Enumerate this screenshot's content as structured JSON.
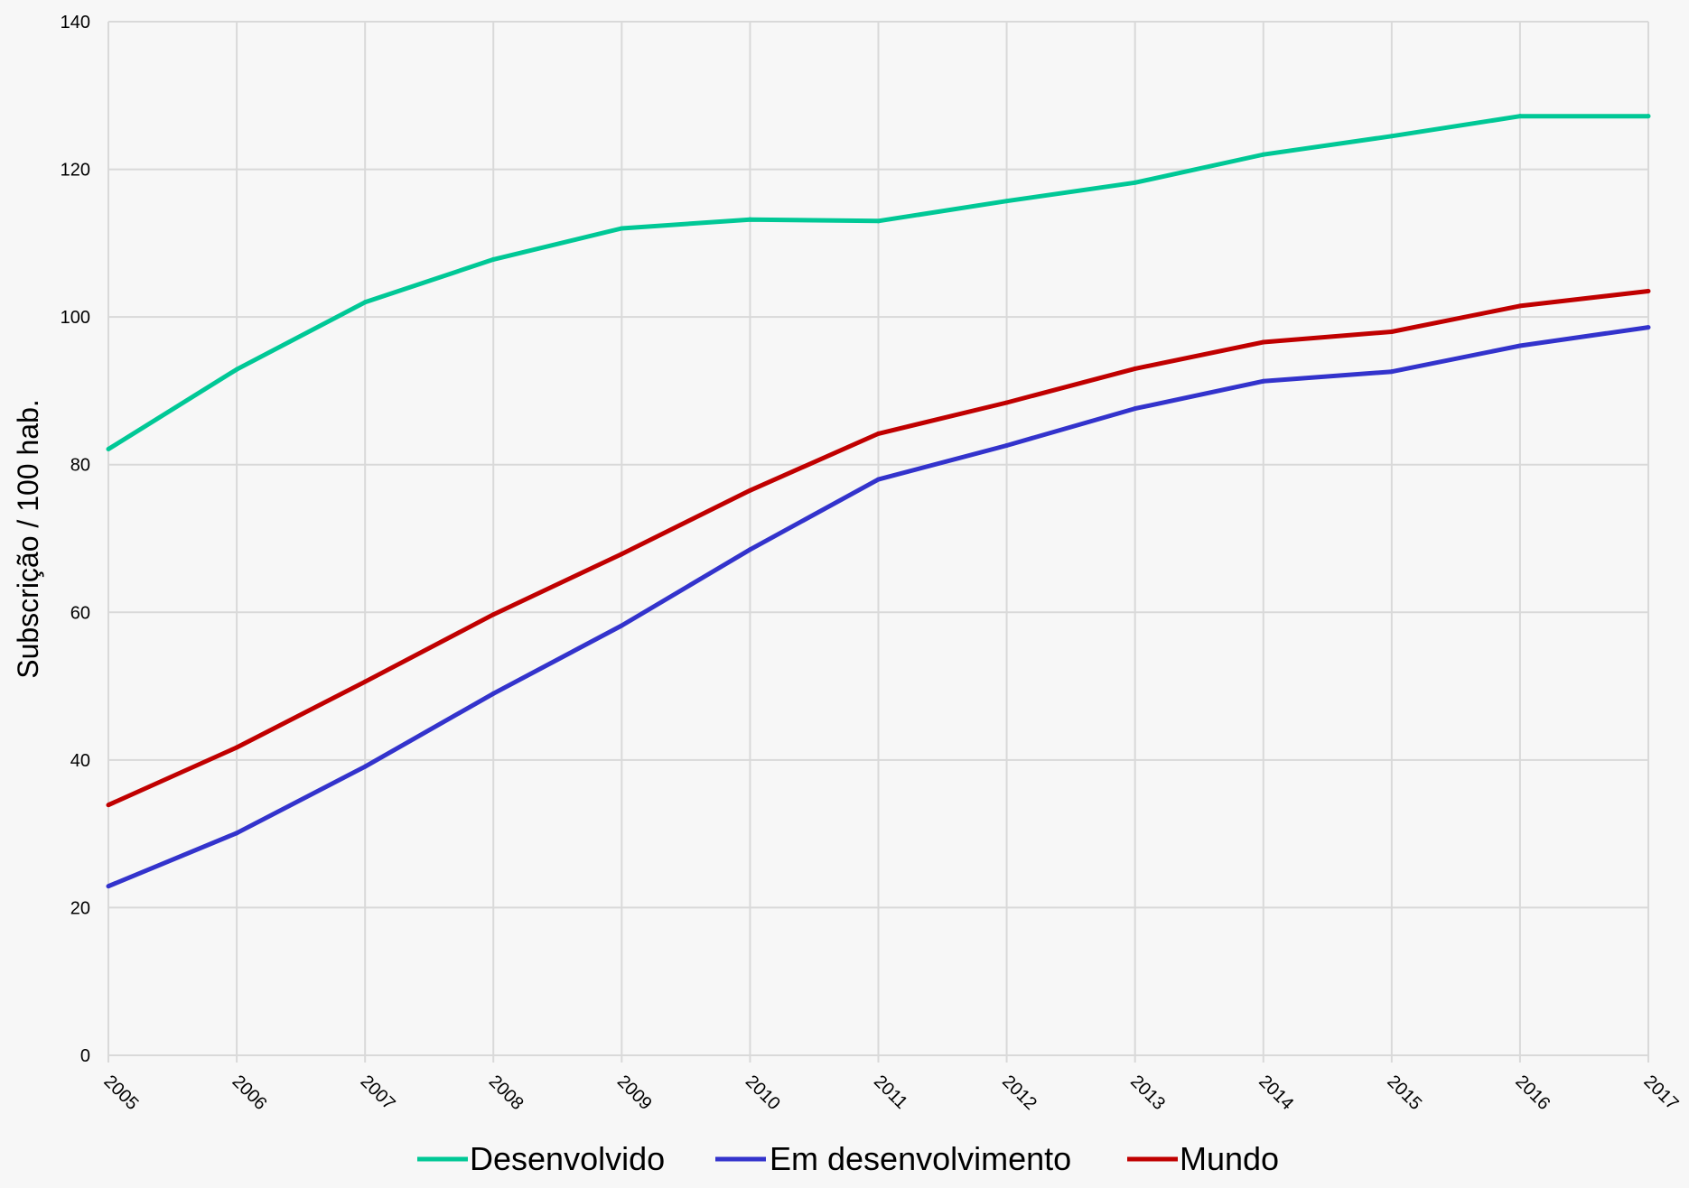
{
  "colors": {
    "background": "#f7f7f7",
    "grid": "#d9d9d9",
    "text": "#000000"
  },
  "chart_data": {
    "type": "line",
    "title": "",
    "xlabel": "",
    "ylabel": "Subscrição / 100 hab.",
    "x": [
      "2005",
      "2006",
      "2007",
      "2008",
      "2009",
      "2010",
      "2011",
      "2012",
      "2013",
      "2014",
      "2015",
      "2016",
      "2017"
    ],
    "ylim": [
      0,
      140
    ],
    "yticks": [
      "0",
      "20",
      "40",
      "60",
      "80",
      "100",
      "120",
      "140"
    ],
    "grid": true,
    "legend": "bottom",
    "series": [
      {
        "name": "Desenvolvido",
        "color": "#00c896",
        "values": [
          82.1,
          92.9,
          102.0,
          107.8,
          112.0,
          113.2,
          113.0,
          115.7,
          118.2,
          122.0,
          124.5,
          127.2,
          127.2
        ]
      },
      {
        "name": "Em desenvolvimento",
        "color": "#3333cc",
        "values": [
          22.9,
          30.1,
          39.1,
          49.0,
          58.2,
          68.5,
          78.0,
          82.6,
          87.6,
          91.3,
          92.6,
          96.1,
          98.6
        ]
      },
      {
        "name": "Mundo",
        "color": "#c00000",
        "values": [
          33.9,
          41.7,
          50.6,
          59.7,
          67.9,
          76.5,
          84.2,
          88.4,
          93.0,
          96.6,
          98.0,
          101.5,
          103.5
        ]
      }
    ]
  }
}
